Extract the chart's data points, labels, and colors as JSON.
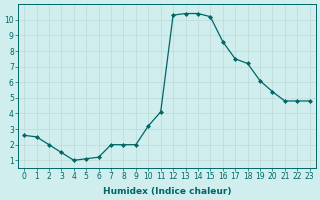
{
  "xlabel": "Humidex (Indice chaleur)",
  "x": [
    0,
    1,
    2,
    3,
    4,
    5,
    6,
    7,
    8,
    9,
    10,
    11,
    12,
    13,
    14,
    15,
    16,
    17,
    18,
    19,
    20,
    21,
    22,
    23
  ],
  "y": [
    2.6,
    2.5,
    2.0,
    1.5,
    1.0,
    1.1,
    1.2,
    2.0,
    2.0,
    2.0,
    3.2,
    4.1,
    10.3,
    10.4,
    10.4,
    10.2,
    8.6,
    7.5,
    7.2,
    6.1,
    5.4,
    4.8,
    4.8,
    4.8
  ],
  "line_color": "#006666",
  "marker": "D",
  "marker_size": 2,
  "bg_color": "#d0eeee",
  "grid_color": "#c0d8d8",
  "ylim": [
    0.5,
    11.0
  ],
  "xlim": [
    -0.5,
    23.5
  ],
  "yticks": [
    1,
    2,
    3,
    4,
    5,
    6,
    7,
    8,
    9,
    10
  ],
  "xticks": [
    0,
    1,
    2,
    3,
    4,
    5,
    6,
    7,
    8,
    9,
    10,
    11,
    12,
    13,
    14,
    15,
    16,
    17,
    18,
    19,
    20,
    21,
    22,
    23
  ],
  "tick_fontsize": 5.5,
  "xlabel_fontsize": 6.5
}
